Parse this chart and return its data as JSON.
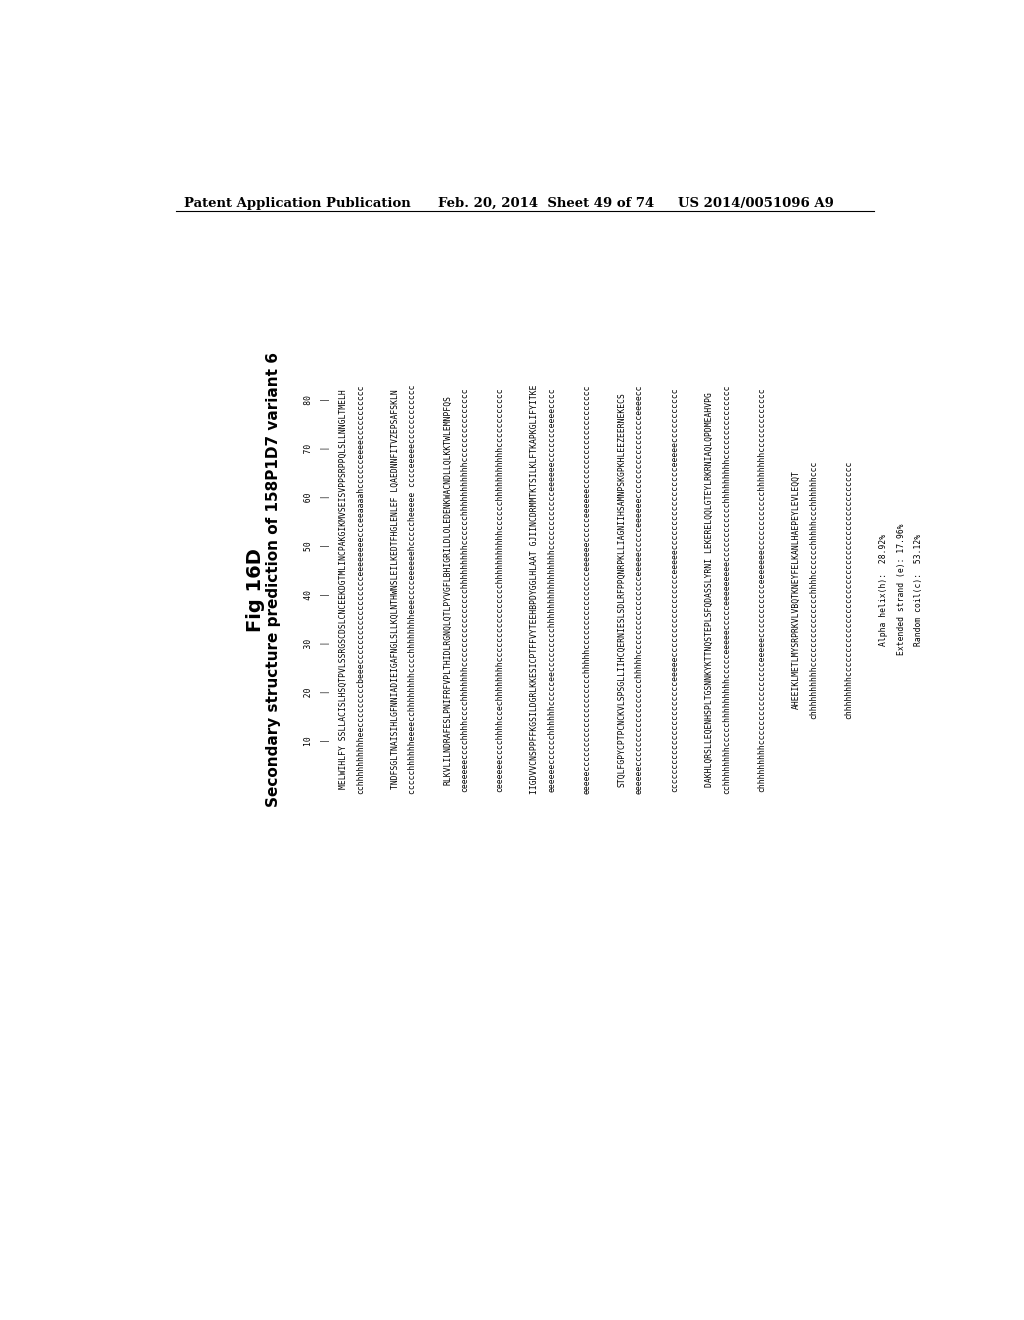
{
  "header_left": "Patent Application Publication",
  "header_mid": "Feb. 20, 2014  Sheet 49 of 74",
  "header_right": "US 2014/0051096 A9",
  "fig_label": "Fig 16D",
  "title": "Secondary structure prediction of 158P1D7 variant 6",
  "background_color": "#ffffff",
  "pos_line": "        10        20        30        40        50        60        70        80",
  "tick_line": "        |         |         |         |         |         |         |         |",
  "seq_blocks": [
    "MELWIHLFY SSLLACISLHSQTPVLSSRGSCDSLCNCEEKDGTMLINCPAKGIKMVSEISVPPSRPPQLSLLNNGLTMELH",
    "cchhhhhhhhhheecccccccccbeeecccccccccccccccccceeeeeeeeccceeaaaahcccccceeeeccccccccccc",
    "",
    "TNDFSGLTNAISIHLGFNNIADIEIGAFNGLSLLKQLNTHWNSLEILKEDTFHGLENLEF LQAEDNNFITVZEPSAFSKLN",
    "ccccchhhhhheeeecchhhhhhhhcccchhhhhhhheeecccceeeeeehcccccheeeee cccceeeeecccccccccccc",
    "",
    "RLKVLILNDRAFESLPNIFRFVPLTHIDLRGNQLQTLPYVGFLBHIGRILDLE DENKWACNDLLQLKKT WLEMNPFQS",
    "ceeeeeecccchhhhcccchhhhhhhcccccccccccccccchhhhhhhhecccccchhhhhhhhhhhccccccccccccccc",
    "",
    "ceeeeeecccchhhhccechhhhhhhhcccccccccccccccchhhhhhhhhhhcccccchhhhhhhhhhhcccccccccccc",
    "",
    "IIGDVVCNSPPFFKGSILDGRLKKESICPTFFVYTEEHBPDYGGLHLAAT GJINCDRMMTKTSILKLFTKAPKGLIFYITKE",
    "eeeeeecccccchhhhhhccccceeccccccccchhhhhhhhhhhhhhhhcccccccccccceeeeeeccccccceeeecccc",
    "",
    "eeeeecccccccccccccccccccchhhhhcccccccccccccccceeeeeeccccceeeeeeccccccccccccccccccccc",
    "",
    "STQLFGPYCPTPCNCKVLSPSGLLIIHCQERNIESLSDLRFPPQNRPKLLIAGNIIHSAMNPSKGPKHLEEZEERNEKECS",
    "eeeeeecccccccccccccccccchhhhhcccccccccccccccceeeeeccccceeeeeeccccccccccccccccceeeecc",
    "",
    "ccccccccccccccccccccccceeeeeccccccccccccccccceeeeeccccccccccccccccceeeeeccccccccccc",
    "",
    "DAKHLQRSLLEQENHSPLTGSNNKYKTTNQSTEPLSFQDASSLYRNI LEKERELQQLGTEYLRKRNIAQLQPDMEAHVPG",
    "cchhhhhhhhccccchhhhhhhhhccccceeeeeccccceeeeeeeeecccccccccccchhhhhhhhhccccccccccccccc",
    "",
    "chhhhhhhhhccccccccccccccccceeeeeccccccccccceeeeeeecccccccccccchhhhhhhhccccccccccccc",
    "",
    "AHEEIKLMETLMYSRPRKVLVBQTKNEYFELKANLHAEPEYLEVLEQQT",
    "chhhhhhhhhhccccccccccccccchhhhcccccchhhhhccchhhhhhccc",
    "",
    "chhhhhhhhcccccccccccccccccccccccccccccccccccccccccccc"
  ],
  "stats": [
    "Alpha helix(h):  28.92%",
    "Extended strand (e): 17.96%",
    "Random coil(c):  53.12%"
  ]
}
